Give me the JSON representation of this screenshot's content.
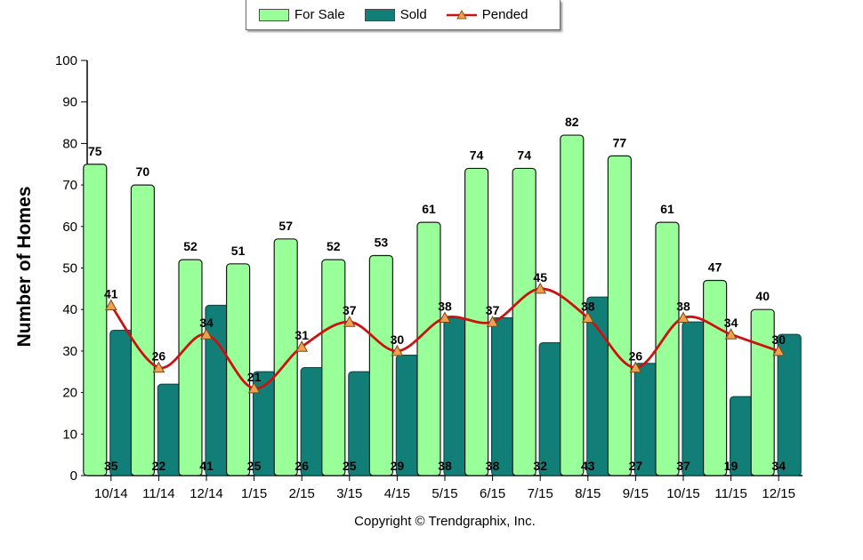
{
  "chart_data": {
    "type": "bar",
    "categories": [
      "10/14",
      "11/14",
      "12/14",
      "1/15",
      "2/15",
      "3/15",
      "4/15",
      "5/15",
      "6/15",
      "7/15",
      "8/15",
      "9/15",
      "10/15",
      "11/15",
      "12/15"
    ],
    "series": [
      {
        "name": "For Sale",
        "type": "bar",
        "color": "#99ff99",
        "values": [
          75,
          70,
          52,
          51,
          57,
          52,
          53,
          61,
          74,
          74,
          82,
          77,
          61,
          47,
          40
        ]
      },
      {
        "name": "Sold",
        "type": "bar",
        "color": "#127e78",
        "values": [
          35,
          22,
          41,
          25,
          26,
          25,
          29,
          38,
          38,
          32,
          43,
          27,
          37,
          19,
          34
        ]
      },
      {
        "name": "Pended",
        "type": "line",
        "color": "#cc1111",
        "marker_color": "#f0a050",
        "values": [
          41,
          26,
          34,
          21,
          31,
          37,
          30,
          38,
          37,
          45,
          38,
          26,
          38,
          34,
          30
        ]
      }
    ],
    "ylabel": "Number of Homes",
    "xlabel": "",
    "ylim": [
      0,
      100
    ],
    "yticks": [
      0,
      10,
      20,
      30,
      40,
      50,
      60,
      70,
      80,
      90,
      100
    ],
    "grid": false,
    "legend_position": "top-center"
  },
  "legend": {
    "for_sale": "For Sale",
    "sold": "Sold",
    "pended": "Pended"
  },
  "copyright": "Copyright © Trendgraphix, Inc."
}
